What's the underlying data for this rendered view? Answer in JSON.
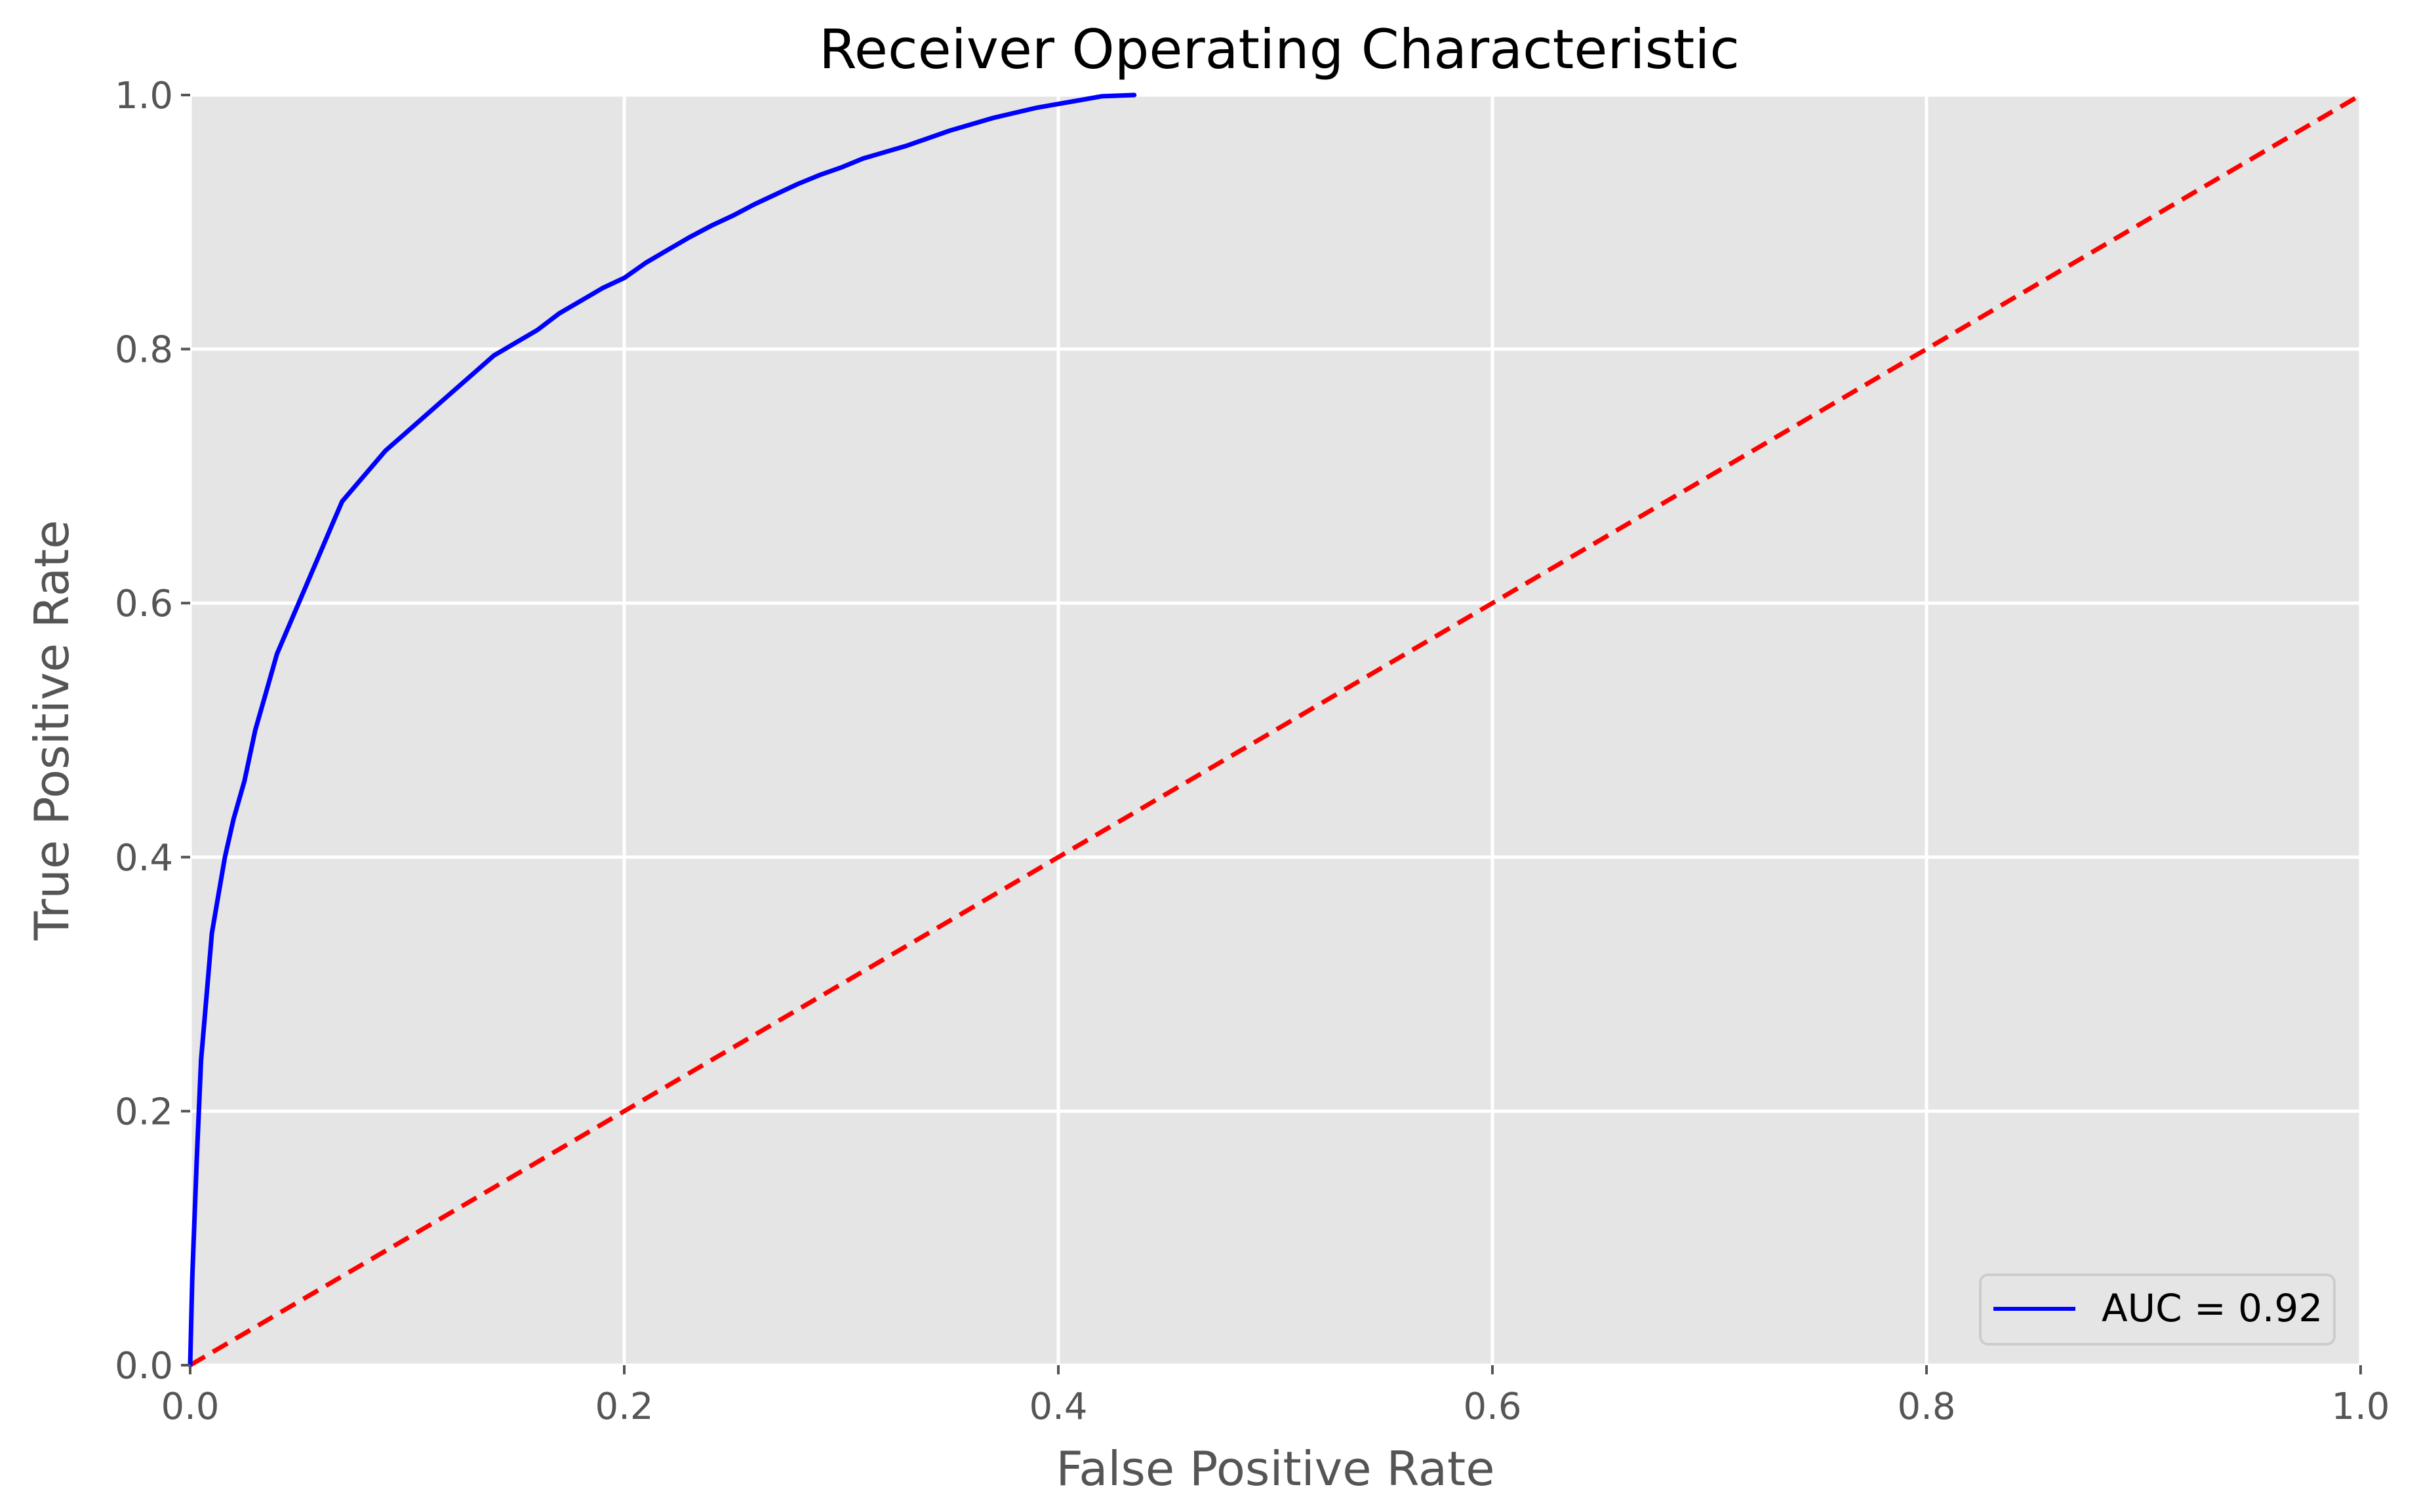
{
  "chart_data": {
    "type": "line",
    "title": "Receiver Operating Characteristic",
    "xlabel": "False Positive Rate",
    "ylabel": "True Positive Rate",
    "xlim": [
      0.0,
      1.0
    ],
    "ylim": [
      0.0,
      1.0
    ],
    "xticks": [
      "0.0",
      "0.2",
      "0.4",
      "0.6",
      "0.8",
      "1.0"
    ],
    "yticks": [
      "0.0",
      "0.2",
      "0.4",
      "0.6",
      "0.8",
      "1.0"
    ],
    "grid": true,
    "legend_position": "lower-right",
    "series": [
      {
        "name": "AUC = 0.92",
        "color": "#0000ff",
        "style": "solid",
        "x": [
          0.0,
          0.001,
          0.003,
          0.005,
          0.008,
          0.01,
          0.013,
          0.016,
          0.02,
          0.025,
          0.03,
          0.035,
          0.04,
          0.045,
          0.05,
          0.055,
          0.06,
          0.065,
          0.07,
          0.08,
          0.09,
          0.1,
          0.11,
          0.12,
          0.13,
          0.14,
          0.15,
          0.16,
          0.17,
          0.18,
          0.19,
          0.2,
          0.21,
          0.22,
          0.23,
          0.24,
          0.25,
          0.26,
          0.27,
          0.28,
          0.29,
          0.3,
          0.31,
          0.32,
          0.33,
          0.34,
          0.35,
          0.36,
          0.37,
          0.38,
          0.39,
          0.4,
          0.41,
          0.42,
          0.435
        ],
        "y": [
          0.0,
          0.07,
          0.16,
          0.24,
          0.3,
          0.34,
          0.37,
          0.4,
          0.43,
          0.46,
          0.5,
          0.53,
          0.56,
          0.58,
          0.6,
          0.62,
          0.64,
          0.66,
          0.68,
          0.7,
          0.72,
          0.735,
          0.75,
          0.765,
          0.78,
          0.795,
          0.805,
          0.815,
          0.828,
          0.838,
          0.848,
          0.856,
          0.868,
          0.878,
          0.888,
          0.897,
          0.905,
          0.914,
          0.922,
          0.93,
          0.937,
          0.943,
          0.95,
          0.955,
          0.96,
          0.966,
          0.972,
          0.977,
          0.982,
          0.986,
          0.99,
          0.993,
          0.996,
          0.999,
          1.0
        ]
      },
      {
        "name": "",
        "color": "#ff0000",
        "style": "dashed",
        "x": [
          0.0,
          1.0
        ],
        "y": [
          0.0,
          1.0
        ]
      }
    ],
    "legend": [
      {
        "label": "AUC = 0.92",
        "color": "#0000ff"
      }
    ]
  }
}
